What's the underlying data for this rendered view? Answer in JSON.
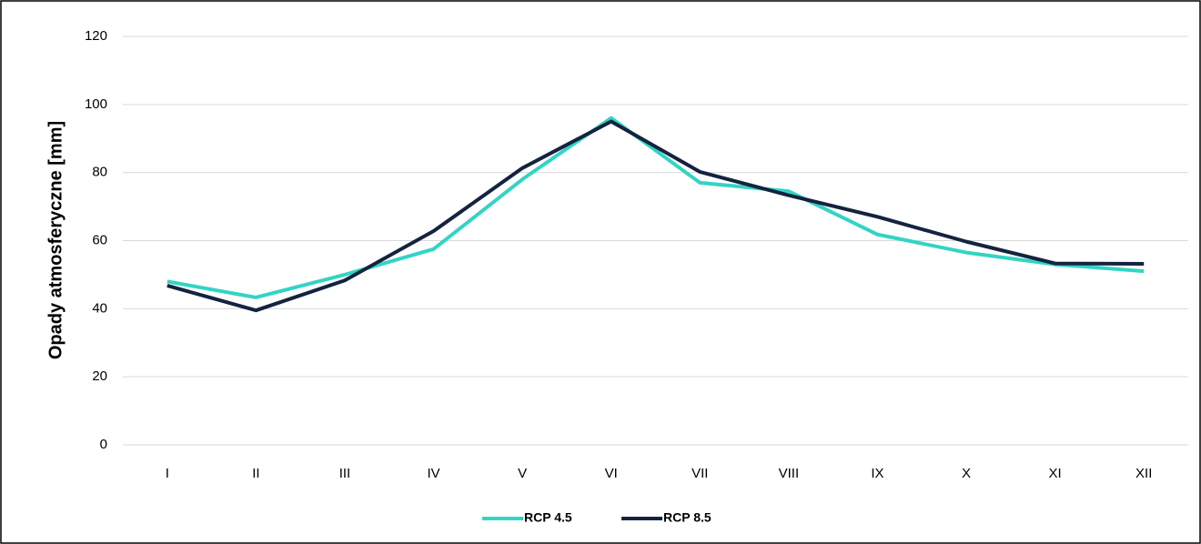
{
  "chart_data": {
    "type": "line",
    "ylabel": "Opady atmosferyczne [mm]",
    "categories": [
      "I",
      "II",
      "III",
      "IV",
      "V",
      "VI",
      "VII",
      "VIII",
      "IX",
      "X",
      "XI",
      "XII"
    ],
    "series": [
      {
        "name": "RCP 4.5",
        "color": "#33d4c4",
        "values": [
          48,
          43.3,
          50,
          57.5,
          78,
          96,
          77,
          74.5,
          61.8,
          56.5,
          53,
          51
        ]
      },
      {
        "name": "RCP 8.5",
        "color": "#14233f",
        "values": [
          46.8,
          39.5,
          48.3,
          62.8,
          81.3,
          95,
          80.2,
          73.3,
          67,
          59.7,
          53.3,
          53.2
        ]
      }
    ],
    "ylim": [
      0,
      120
    ],
    "yticks": [
      0,
      20,
      40,
      60,
      80,
      100,
      120
    ],
    "grid": true,
    "legend": "bottom"
  }
}
